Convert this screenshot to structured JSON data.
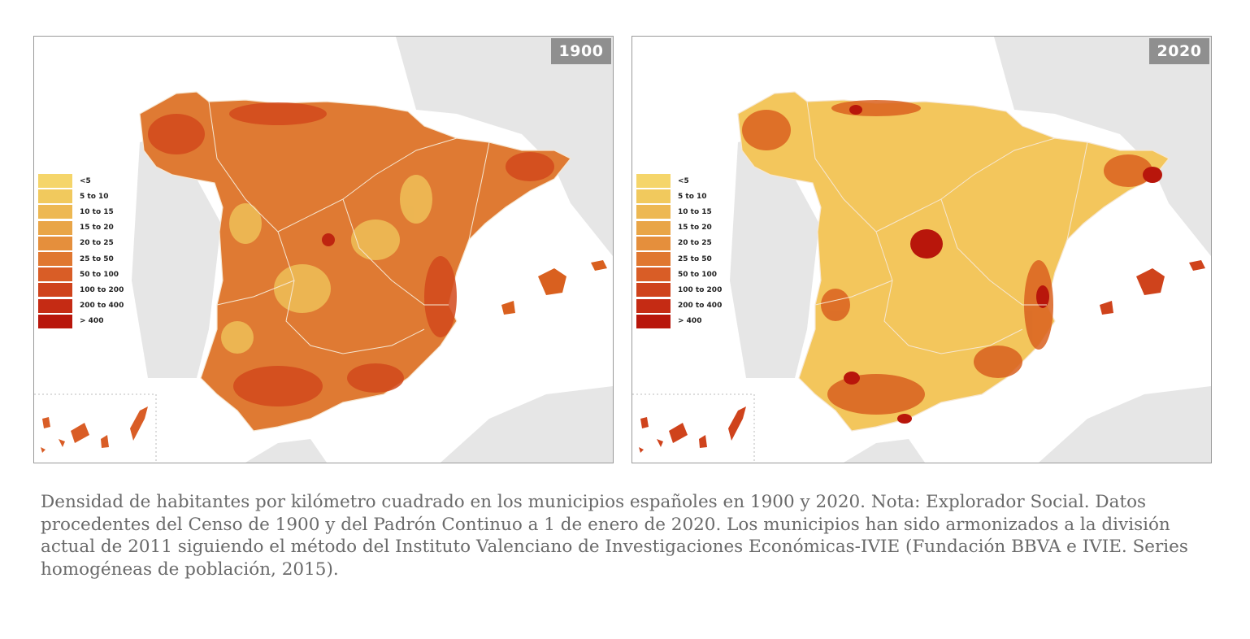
{
  "colors": {
    "legend_scale": [
      "#f5d56a",
      "#f1c95d",
      "#edb852",
      "#e9a547",
      "#e58f3c",
      "#e07730",
      "#d95d26",
      "#cf431c",
      "#c52b14",
      "#b8160b"
    ],
    "sea": "#ffffff",
    "other_land": "#e6e6e6",
    "border": "#f6e7d2"
  },
  "legend": {
    "items": [
      {
        "label": "<5",
        "color": "#f5d56a"
      },
      {
        "label": "5 to 10",
        "color": "#f1c95d"
      },
      {
        "label": "10 to 15",
        "color": "#edb852"
      },
      {
        "label": "15 to 20",
        "color": "#e9a547"
      },
      {
        "label": "20 to 25",
        "color": "#e58f3c"
      },
      {
        "label": "25 to 50",
        "color": "#e07730"
      },
      {
        "label": "50 to 100",
        "color": "#d95d26"
      },
      {
        "label": "100 to 200",
        "color": "#cf431c"
      },
      {
        "label": "200 to 400",
        "color": "#c52b14"
      },
      {
        "label": "> 400",
        "color": "#b8160b"
      }
    ]
  },
  "maps": [
    {
      "year": "1900",
      "base_color": "#df7a33",
      "hotspot_color": "#d2491c"
    },
    {
      "year": "2020",
      "base_color": "#f3c65c",
      "hotspot_color": "#cf3a15"
    }
  ],
  "caption": "Densidad de habitantes por kilómetro cuadrado en los municipios españoles en 1900 y 2020. Nota: Explorador Social. Datos procedentes del Censo de 1900 y del Padrón Continuo a 1 de enero de 2020. Los municipios han sido armonizados a la división actual de 2011 siguiendo el método del Instituto Valenciano de Investigaciones Económicas-IVIE (Fundación BBVA e IVIE. Series homogéneas de población, 2015)."
}
